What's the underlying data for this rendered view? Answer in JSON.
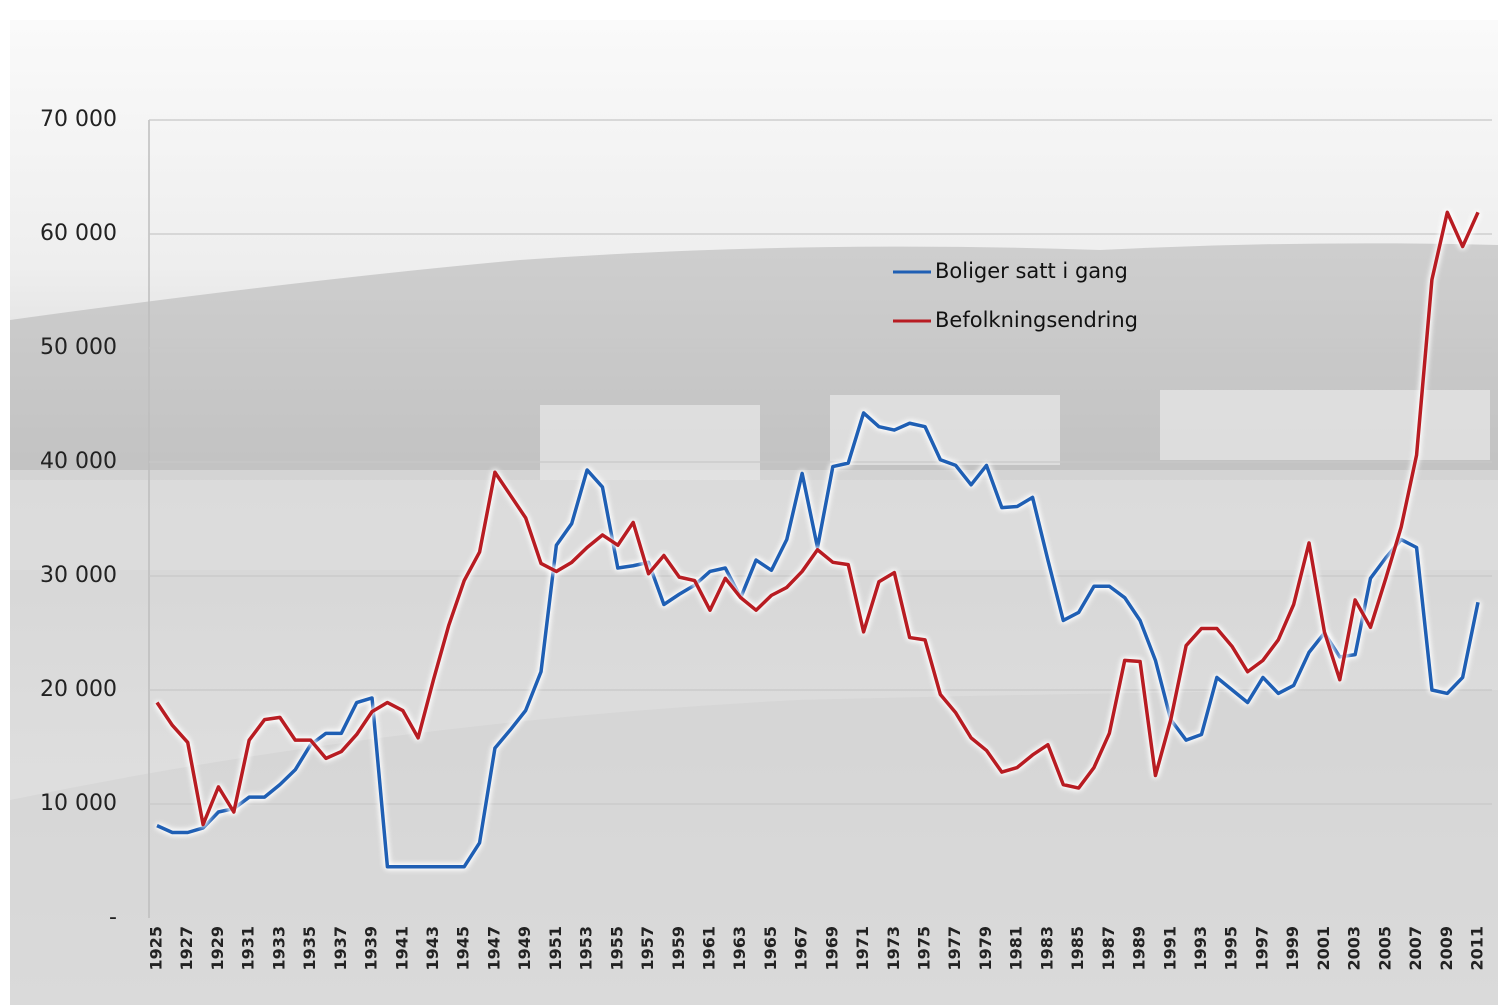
{
  "chart_data": {
    "type": "line",
    "x": [
      1925,
      1926,
      1927,
      1928,
      1929,
      1930,
      1931,
      1932,
      1933,
      1934,
      1935,
      1936,
      1937,
      1938,
      1939,
      1940,
      1941,
      1942,
      1943,
      1944,
      1945,
      1946,
      1947,
      1948,
      1949,
      1950,
      1951,
      1952,
      1953,
      1954,
      1955,
      1956,
      1957,
      1958,
      1959,
      1960,
      1961,
      1962,
      1963,
      1964,
      1965,
      1966,
      1967,
      1968,
      1969,
      1970,
      1971,
      1972,
      1973,
      1974,
      1975,
      1976,
      1977,
      1978,
      1979,
      1980,
      1981,
      1982,
      1983,
      1984,
      1985,
      1986,
      1987,
      1988,
      1989,
      1990,
      1991,
      1992,
      1993,
      1994,
      1995,
      1996,
      1997,
      1998,
      1999,
      2000,
      2001,
      2002,
      2003,
      2004,
      2005,
      2006,
      2007,
      2008,
      2009,
      2010,
      2011
    ],
    "xlim": [
      1925,
      2011
    ],
    "xticks": [
      1925,
      1927,
      1929,
      1931,
      1933,
      1935,
      1937,
      1939,
      1941,
      1943,
      1945,
      1947,
      1949,
      1951,
      1953,
      1955,
      1957,
      1959,
      1961,
      1963,
      1965,
      1967,
      1969,
      1971,
      1973,
      1975,
      1977,
      1979,
      1981,
      1983,
      1985,
      1987,
      1989,
      1991,
      1993,
      1995,
      1997,
      1999,
      2001,
      2003,
      2005,
      2007,
      2009,
      2011
    ],
    "ylim": [
      0,
      70000
    ],
    "yticks": [
      {
        "value": 0,
        "label": "-"
      },
      {
        "value": 10000,
        "label": "10 000"
      },
      {
        "value": 20000,
        "label": "20 000"
      },
      {
        "value": 30000,
        "label": "30 000"
      },
      {
        "value": 40000,
        "label": "40 000"
      },
      {
        "value": 50000,
        "label": "50 000"
      },
      {
        "value": 60000,
        "label": "60 000"
      },
      {
        "value": 70000,
        "label": "70 000"
      }
    ],
    "grid": true,
    "legend": "upper right",
    "series": [
      {
        "name": "Boliger satt i gang",
        "color": "#1f5fb4",
        "values": [
          8100,
          7500,
          7500,
          7900,
          9300,
          9600,
          10600,
          10600,
          11700,
          13000,
          15200,
          16200,
          16200,
          18900,
          19300,
          4500,
          4500,
          4500,
          4500,
          4500,
          4500,
          6600,
          14900,
          16500,
          18200,
          21600,
          32700,
          34600,
          39300,
          37800,
          30700,
          30900,
          31200,
          27500,
          28400,
          29200,
          30400,
          30700,
          28100,
          31400,
          30500,
          33200,
          39000,
          32500,
          39600,
          39900,
          44300,
          43100,
          42800,
          43400,
          43100,
          40200,
          39700,
          38000,
          39700,
          36000,
          36100,
          36900,
          31400,
          26100,
          26800,
          29100,
          29100,
          28100,
          26100,
          22600,
          17400,
          15600,
          16100,
          21100,
          20000,
          18900,
          21100,
          19700,
          20400,
          23300,
          25000,
          22900,
          23100,
          29800,
          31600,
          33200,
          32500,
          20000,
          19700,
          21100,
          27700
        ]
      },
      {
        "name": "Befolkningsendring",
        "color": "#b81c22",
        "values": [
          18900,
          16900,
          15400,
          8200,
          11500,
          9300,
          15600,
          17400,
          17600,
          15600,
          15600,
          14000,
          14600,
          16100,
          18100,
          18900,
          18200,
          15800,
          20900,
          25700,
          29600,
          32100,
          39100,
          37100,
          35100,
          31100,
          30400,
          31200,
          32500,
          33600,
          32700,
          34700,
          30200,
          31800,
          29900,
          29600,
          27000,
          29800,
          28100,
          27000,
          28300,
          29000,
          30400,
          32300,
          31200,
          31000,
          25100,
          29500,
          30300,
          24600,
          24400,
          19600,
          18000,
          15800,
          14700,
          12800,
          13200,
          14300,
          15200,
          11700,
          11400,
          13200,
          16200,
          22600,
          22500,
          12500,
          17400,
          23900,
          25400,
          25400,
          23800,
          21600,
          22600,
          24400,
          27500,
          32900,
          25100,
          20900,
          27900,
          25500,
          29800,
          34300,
          40600,
          56000,
          61900,
          58900,
          61900
        ]
      }
    ]
  }
}
